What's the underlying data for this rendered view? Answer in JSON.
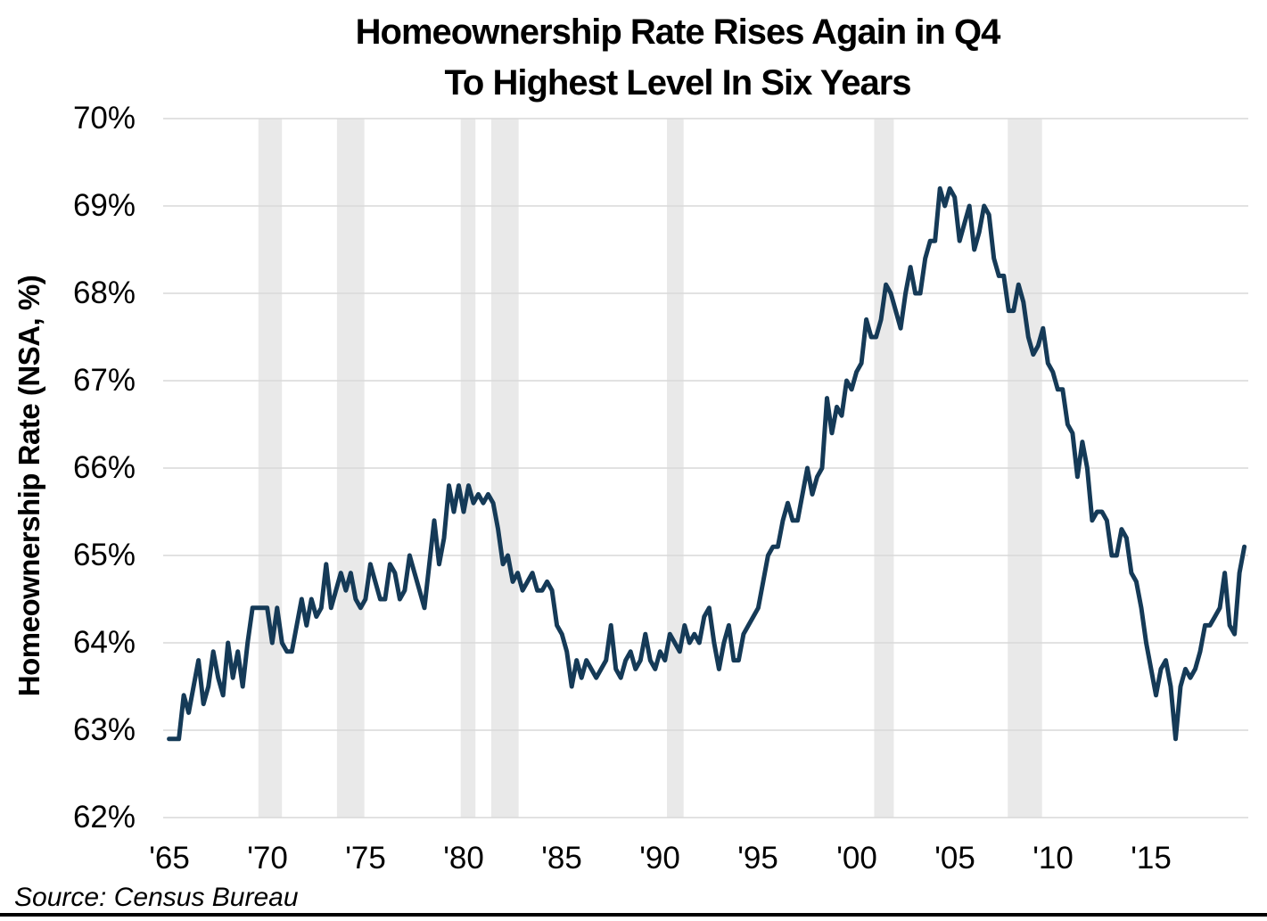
{
  "chart_data": {
    "type": "line",
    "title_line1": "Homeownership Rate Rises Again in Q4",
    "title_line2": "To Highest Level In Six Years",
    "ylabel": "Homeownership Rate (NSA, %)",
    "source": "Source: Census Bureau",
    "xlabel": "",
    "x_start": 1965,
    "x_step": 0.25,
    "x_unit": "quarterly",
    "ylim": [
      62,
      70
    ],
    "grid": "horizontal-only",
    "legend": "none",
    "y_ticks": [
      {
        "value": 70,
        "label": "70%"
      },
      {
        "value": 69,
        "label": "69%"
      },
      {
        "value": 68,
        "label": "68%"
      },
      {
        "value": 67,
        "label": "67%"
      },
      {
        "value": 66,
        "label": "66%"
      },
      {
        "value": 65,
        "label": "65%"
      },
      {
        "value": 64,
        "label": "64%"
      },
      {
        "value": 63,
        "label": "63%"
      },
      {
        "value": 62,
        "label": "62%"
      }
    ],
    "x_ticks": [
      {
        "year": 1965,
        "label": "'65"
      },
      {
        "year": 1970,
        "label": "'70"
      },
      {
        "year": 1975,
        "label": "'75"
      },
      {
        "year": 1980,
        "label": "'80"
      },
      {
        "year": 1985,
        "label": "'85"
      },
      {
        "year": 1990,
        "label": "'90"
      },
      {
        "year": 1995,
        "label": "'95"
      },
      {
        "year": 2000,
        "label": "'00"
      },
      {
        "year": 2005,
        "label": "'05"
      },
      {
        "year": 2010,
        "label": "'10"
      },
      {
        "year": 2015,
        "label": "'15"
      }
    ],
    "recessions": [
      [
        1969.55,
        1970.75
      ],
      [
        1973.55,
        1974.95
      ],
      [
        1979.85,
        1980.6
      ],
      [
        1981.4,
        1982.8
      ],
      [
        1990.35,
        1991.2
      ],
      [
        2000.9,
        2001.9
      ],
      [
        2007.7,
        2009.45
      ]
    ],
    "series": [
      {
        "name": "Homeownership Rate (NSA, %)",
        "color": "#153a57",
        "values": [
          62.9,
          62.9,
          62.9,
          63.4,
          63.2,
          63.5,
          63.8,
          63.3,
          63.5,
          63.9,
          63.6,
          63.4,
          64.0,
          63.6,
          63.9,
          63.5,
          64.0,
          64.4,
          64.4,
          64.4,
          64.4,
          64.0,
          64.4,
          64.0,
          63.9,
          63.9,
          64.2,
          64.5,
          64.2,
          64.5,
          64.3,
          64.4,
          64.9,
          64.4,
          64.6,
          64.8,
          64.6,
          64.8,
          64.5,
          64.4,
          64.5,
          64.9,
          64.7,
          64.5,
          64.5,
          64.9,
          64.8,
          64.5,
          64.6,
          65.0,
          64.8,
          64.6,
          64.4,
          64.9,
          65.4,
          64.9,
          65.2,
          65.8,
          65.5,
          65.8,
          65.5,
          65.8,
          65.6,
          65.7,
          65.6,
          65.7,
          65.6,
          65.3,
          64.9,
          65.0,
          64.7,
          64.8,
          64.6,
          64.7,
          64.8,
          64.6,
          64.6,
          64.7,
          64.6,
          64.2,
          64.1,
          63.9,
          63.5,
          63.8,
          63.6,
          63.8,
          63.7,
          63.6,
          63.7,
          63.8,
          64.2,
          63.7,
          63.6,
          63.8,
          63.9,
          63.7,
          63.8,
          64.1,
          63.8,
          63.7,
          63.9,
          63.8,
          64.1,
          64.0,
          63.9,
          64.2,
          64.0,
          64.1,
          64.0,
          64.3,
          64.4,
          64.0,
          63.7,
          64.0,
          64.2,
          63.8,
          63.8,
          64.1,
          64.2,
          64.3,
          64.4,
          64.7,
          65.0,
          65.1,
          65.1,
          65.4,
          65.6,
          65.4,
          65.4,
          65.7,
          66.0,
          65.7,
          65.9,
          66.0,
          66.8,
          66.4,
          66.7,
          66.6,
          67.0,
          66.9,
          67.1,
          67.2,
          67.7,
          67.5,
          67.5,
          67.7,
          68.1,
          68.0,
          67.8,
          67.6,
          68.0,
          68.3,
          68.0,
          68.0,
          68.4,
          68.6,
          68.6,
          69.2,
          69.0,
          69.2,
          69.1,
          68.6,
          68.8,
          69.0,
          68.5,
          68.7,
          69.0,
          68.9,
          68.4,
          68.2,
          68.2,
          67.8,
          67.8,
          68.1,
          67.9,
          67.5,
          67.3,
          67.4,
          67.6,
          67.2,
          67.1,
          66.9,
          66.9,
          66.5,
          66.4,
          65.9,
          66.3,
          66.0,
          65.4,
          65.5,
          65.5,
          65.4,
          65.0,
          65.0,
          65.3,
          65.2,
          64.8,
          64.7,
          64.4,
          64.0,
          63.7,
          63.4,
          63.7,
          63.8,
          63.5,
          62.9,
          63.5,
          63.7,
          63.6,
          63.7,
          63.9,
          64.2,
          64.2,
          64.3,
          64.4,
          64.8,
          64.2,
          64.1,
          64.8,
          65.1
        ]
      }
    ],
    "colors": {
      "line": "#153a57",
      "recession_band": "#e9e9e9",
      "gridline": "#d9d9d9",
      "text": "#000000",
      "background": "#ffffff"
    }
  }
}
